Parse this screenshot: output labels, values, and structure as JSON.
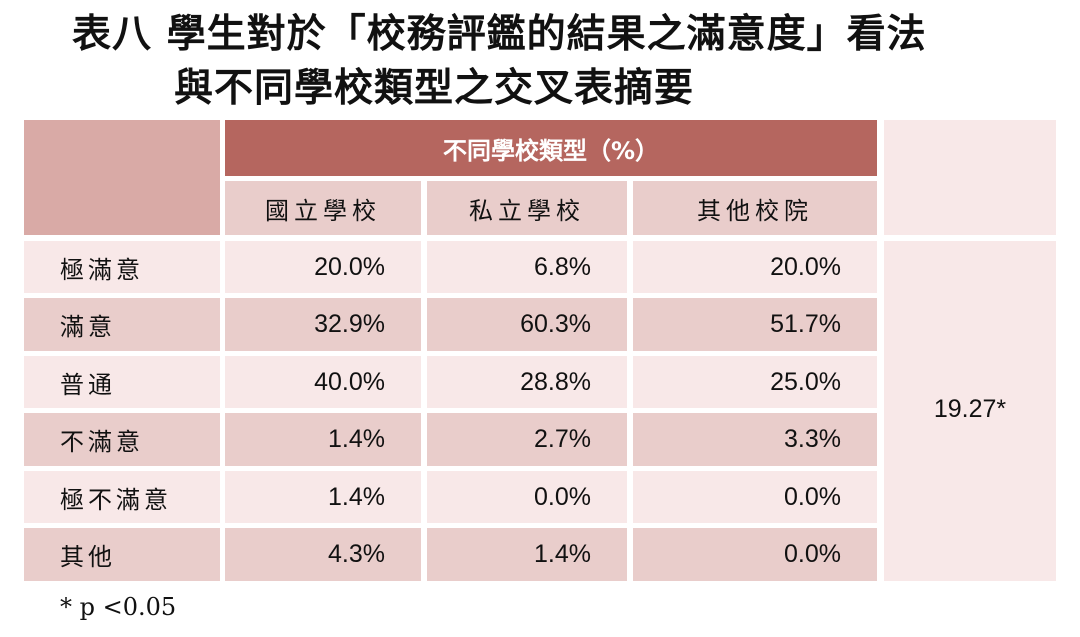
{
  "title": {
    "line1": "表八  學生對於「校務評鑑的結果之滿意度」看法",
    "line2": "與不同學校類型之交叉表摘要"
  },
  "table": {
    "group_header": "不同學校類型（%）",
    "columns": [
      "國立學校",
      "私立學校",
      "其他校院"
    ],
    "rows": [
      {
        "label": "極滿意",
        "values": [
          "20.0%",
          "6.8%",
          "20.0%"
        ]
      },
      {
        "label": "滿意",
        "values": [
          "32.9%",
          "60.3%",
          "51.7%"
        ]
      },
      {
        "label": "普通",
        "values": [
          "40.0%",
          "28.8%",
          "25.0%"
        ]
      },
      {
        "label": "不滿意",
        "values": [
          "1.4%",
          "2.7%",
          "3.3%"
        ]
      },
      {
        "label": "極不滿意",
        "values": [
          "1.4%",
          "0.0%",
          "0.0%"
        ]
      },
      {
        "label": "其他",
        "values": [
          "4.3%",
          "1.4%",
          "0.0%"
        ]
      }
    ],
    "statistic": "19.27*"
  },
  "footnote": "* p <0.05"
}
